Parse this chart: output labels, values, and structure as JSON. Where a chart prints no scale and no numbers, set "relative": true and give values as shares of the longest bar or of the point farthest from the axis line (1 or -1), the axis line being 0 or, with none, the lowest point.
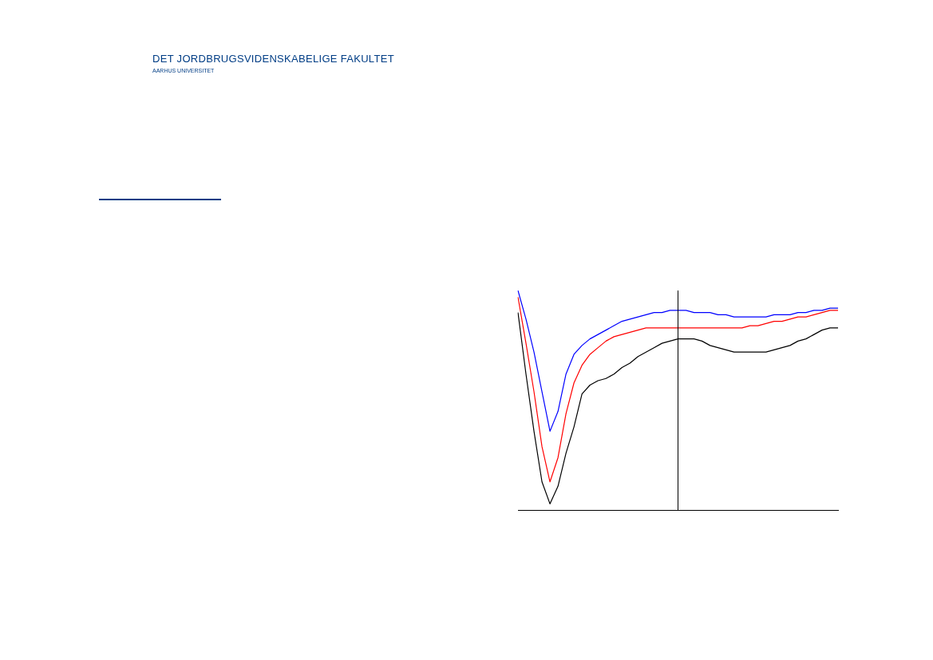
{
  "chart_data": {
    "type": "line",
    "title": "DET JORDBRUGSVIDENSKABELIGE FAKULTET",
    "subtitle": "AARHUS UNIVERSITET",
    "relative": true,
    "grid": false,
    "legend": false,
    "marker": "none",
    "line_style": "solid",
    "categories": [
      null,
      null,
      null,
      null,
      null,
      null,
      null,
      null,
      null,
      null,
      null,
      null,
      null,
      null,
      null,
      null,
      null,
      null,
      null,
      null,
      null,
      null,
      null,
      null,
      null,
      null,
      null,
      null,
      null,
      null,
      null,
      null,
      null,
      null,
      null,
      null,
      null,
      null,
      null,
      null,
      null
    ],
    "series": [
      {
        "color": "#0000ff",
        "values": [
          1.0,
          0.87,
          0.72,
          0.54,
          0.36,
          0.45,
          0.62,
          0.71,
          0.75,
          0.78,
          0.8,
          0.82,
          0.84,
          0.86,
          0.87,
          0.88,
          0.89,
          0.9,
          0.9,
          0.91,
          0.91,
          0.91,
          0.9,
          0.9,
          0.9,
          0.89,
          0.89,
          0.88,
          0.88,
          0.88,
          0.88,
          0.88,
          0.89,
          0.89,
          0.89,
          0.9,
          0.9,
          0.91,
          0.91,
          0.92,
          0.92
        ]
      },
      {
        "color": "#ff0000",
        "values": [
          0.97,
          0.76,
          0.54,
          0.29,
          0.13,
          0.24,
          0.44,
          0.58,
          0.66,
          0.71,
          0.74,
          0.77,
          0.79,
          0.8,
          0.81,
          0.82,
          0.83,
          0.83,
          0.83,
          0.83,
          0.83,
          0.83,
          0.83,
          0.83,
          0.83,
          0.83,
          0.83,
          0.83,
          0.83,
          0.84,
          0.84,
          0.85,
          0.86,
          0.86,
          0.87,
          0.88,
          0.88,
          0.89,
          0.9,
          0.91,
          0.91
        ]
      },
      {
        "color": "#000000",
        "values": [
          0.9,
          0.62,
          0.36,
          0.13,
          0.03,
          0.11,
          0.26,
          0.38,
          0.53,
          0.57,
          0.59,
          0.6,
          0.62,
          0.65,
          0.67,
          0.7,
          0.72,
          0.74,
          0.76,
          0.77,
          0.78,
          0.78,
          0.78,
          0.77,
          0.75,
          0.74,
          0.73,
          0.72,
          0.72,
          0.72,
          0.72,
          0.72,
          0.73,
          0.74,
          0.75,
          0.77,
          0.78,
          0.8,
          0.82,
          0.83,
          0.83
        ]
      }
    ]
  }
}
